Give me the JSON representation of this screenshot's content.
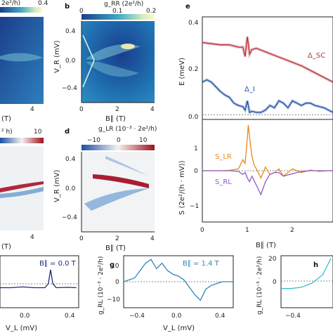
{
  "panel_letters": {
    "b": "b",
    "d": "d",
    "e": "e",
    "g": "g",
    "h": "h"
  },
  "colors": {
    "delta_sc": "#b5323a",
    "delta_i": "#1f4fa6",
    "s_lr": "#e8891c",
    "s_rl": "#8a5cc7",
    "trace_f": "#1d2a7a",
    "trace_g": "#2f86b8",
    "trace_h": "#3ac0c8"
  },
  "chart_data": [
    {
      "id": "a-partial",
      "type": "heatmap",
      "top_ticks": [
        "0.4"
      ],
      "top_label": "2e²/h)",
      "x_ticks": [
        "4"
      ],
      "xlabel": "(T)"
    },
    {
      "id": "b",
      "type": "heatmap",
      "title": "g_RR (2e²/h)",
      "colorbar_ticks": [
        "0",
        "0.1",
        "0.2"
      ],
      "x_ticks": [
        "0",
        "2",
        "4"
      ],
      "y_ticks": [
        "0.4",
        "0.0",
        "−0.4"
      ],
      "xlabel": "B∥ (T)",
      "ylabel": "V_R (mV)"
    },
    {
      "id": "c-partial",
      "type": "heatmap",
      "colorbar_ticks": [
        "10"
      ],
      "colorbar_label_fragment": "² h)",
      "x_ticks": [
        "4"
      ],
      "xlabel": "(T)"
    },
    {
      "id": "d",
      "type": "heatmap",
      "title": "g_LR (10⁻³ · 2e²/h)",
      "colorbar_ticks": [
        "−10",
        "0",
        "10"
      ],
      "x_ticks": [
        "0",
        "2",
        "4"
      ],
      "y_ticks": [
        "0.4",
        "0.0",
        "−0.4"
      ],
      "xlabel": "B∥ (T)",
      "ylabel": "V_R (mV)"
    },
    {
      "id": "e-top",
      "type": "line",
      "ylabel": "E (meV)",
      "y_ticks": [
        "0.4",
        "0.2",
        "0.0"
      ],
      "ylim": [
        0,
        0.4
      ],
      "xlim": [
        0,
        2.9
      ],
      "series": [
        {
          "name": "Δ_SC",
          "x": [
            0,
            0.2,
            0.4,
            0.6,
            0.8,
            0.9,
            0.95,
            1.0,
            1.05,
            1.1,
            1.2,
            1.4,
            1.6,
            1.8,
            2.0,
            2.2,
            2.4,
            2.6,
            2.8,
            2.9
          ],
          "y": [
            0.31,
            0.305,
            0.3,
            0.3,
            0.29,
            0.29,
            0.25,
            0.335,
            0.26,
            0.28,
            0.285,
            0.27,
            0.255,
            0.24,
            0.225,
            0.21,
            0.19,
            0.17,
            0.15,
            0.14
          ]
        },
        {
          "name": "Δ_I",
          "x": [
            0,
            0.1,
            0.2,
            0.3,
            0.4,
            0.5,
            0.6,
            0.7,
            0.8,
            0.9,
            0.95,
            1.0,
            1.05,
            1.1,
            1.2,
            1.3,
            1.4,
            1.5,
            1.6,
            1.7,
            1.8,
            1.9,
            2.0,
            2.1,
            2.2,
            2.3,
            2.4,
            2.5,
            2.6,
            2.7,
            2.8,
            2.9
          ],
          "y": [
            0.14,
            0.15,
            0.14,
            0.12,
            0.1,
            0.085,
            0.075,
            0.05,
            0.04,
            0.035,
            0.02,
            0.06,
            0.01,
            0.015,
            0.01,
            0.01,
            0.02,
            0.04,
            0.03,
            0.06,
            0.05,
            0.03,
            0.06,
            0.05,
            0.04,
            0.05,
            0.05,
            0.04,
            0.035,
            0.03,
            0.02,
            0.01
          ]
        }
      ]
    },
    {
      "id": "e-bottom",
      "type": "line",
      "ylabel": "S (2e²/(h · mV))",
      "y_ticks": [
        "1",
        "0",
        "−1"
      ],
      "ylim": [
        -1.4,
        1.4
      ],
      "xlim": [
        0,
        2.9
      ],
      "x_ticks": [
        "0",
        "1",
        "2"
      ],
      "xlabel": "B∥ (T)",
      "series": [
        {
          "name": "S_LR",
          "x": [
            0,
            0.4,
            0.6,
            0.8,
            0.9,
            0.95,
            1.0,
            1.02,
            1.05,
            1.1,
            1.15,
            1.2,
            1.3,
            1.4,
            1.5,
            1.6,
            1.7,
            1.8,
            2.0,
            2.2,
            2.4,
            2.6,
            2.8,
            2.9
          ],
          "y": [
            0,
            0,
            0.01,
            0.05,
            0.3,
            0.2,
            0.9,
            1.25,
            0.9,
            0.4,
            0.15,
            0.05,
            -0.2,
            0.1,
            -0.1,
            -0.05,
            0.05,
            -0.15,
            0.05,
            -0.05,
            0.02,
            -0.02,
            0,
            0
          ]
        },
        {
          "name": "S_RL",
          "x": [
            0,
            0.4,
            0.6,
            0.8,
            0.9,
            0.95,
            1.0,
            1.05,
            1.1,
            1.2,
            1.3,
            1.4,
            1.5,
            1.6,
            1.7,
            1.8,
            2.0,
            2.2,
            2.4,
            2.6,
            2.8,
            2.9
          ],
          "y": [
            0,
            0,
            0,
            -0.02,
            -0.1,
            -0.05,
            -0.2,
            -0.3,
            -0.15,
            -0.4,
            -0.65,
            -0.3,
            -0.1,
            -0.05,
            -0.05,
            -0.15,
            -0.08,
            -0.02,
            0,
            0,
            0,
            0
          ]
        }
      ]
    },
    {
      "id": "f-partial",
      "type": "line",
      "annotation": "B∥ = 0.0 T",
      "x_ticks": [
        "0.0",
        "0.4"
      ],
      "xlabel": "V_L (mV)",
      "series": [
        {
          "name": "B∥ = 0.0 T",
          "x": [
            -0.2,
            -0.1,
            0,
            0.1,
            0.2,
            0.23,
            0.25,
            0.27,
            0.3,
            0.4,
            0.48
          ],
          "y": [
            0,
            0,
            0.2,
            0,
            0,
            1,
            4.5,
            1,
            0,
            0.1,
            0
          ]
        }
      ]
    },
    {
      "id": "g",
      "type": "line",
      "annotation": "B∥ = 1.4 T",
      "ylabel": "g_RL (10⁻³ · 2e²/h)",
      "y_ticks": [
        "10",
        "0",
        "−10"
      ],
      "ylim": [
        -14,
        14
      ],
      "xlim": [
        -0.5,
        0.5
      ],
      "x_ticks": [
        "−0.4",
        "0.0",
        "0.4"
      ],
      "xlabel": "V_L (mV)",
      "series": [
        {
          "name": "B∥ = 1.4 T",
          "x": [
            -0.5,
            -0.4,
            -0.3,
            -0.25,
            -0.2,
            -0.15,
            -0.1,
            -0.05,
            0.0,
            0.05,
            0.1,
            0.15,
            0.2,
            0.25,
            0.3,
            0.35,
            0.4,
            0.45,
            0.5
          ],
          "y": [
            0,
            2,
            10,
            12,
            7,
            10,
            6,
            4,
            3,
            1,
            -3,
            -7,
            -10,
            -4,
            -2,
            -1,
            0,
            0,
            0
          ]
        }
      ]
    },
    {
      "id": "h-partial",
      "type": "line",
      "ylabel": "g_RL (10⁻³ · 2e²/h)",
      "y_ticks": [
        "20",
        "0"
      ],
      "x_ticks": [
        "−0.4"
      ],
      "series": [
        {
          "name": "",
          "x": [
            -0.5,
            -0.45,
            -0.4,
            -0.35,
            -0.3,
            -0.28,
            -0.26
          ],
          "y": [
            0,
            0,
            1,
            4,
            10,
            16,
            22
          ]
        }
      ]
    }
  ]
}
